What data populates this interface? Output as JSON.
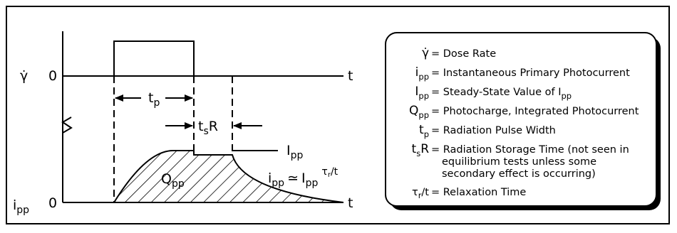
{
  "plot": {
    "y_axis_top_symbol": "γ̇",
    "y_axis_top_zero": "0",
    "y_axis_bottom_symbol": "i",
    "y_axis_bottom_symbol_sub": "pp",
    "y_axis_bottom_zero": "0",
    "t_axis_top": "t",
    "t_axis_bottom": "t",
    "tp_label": "t",
    "tp_label_sub": "p",
    "tsr_label_main": "t",
    "tsr_label_sub": "s",
    "tsr_label_end": "R",
    "ipp_steady_label": "I",
    "ipp_steady_label_sub": "pp",
    "qpp_label": "Q",
    "qpp_label_sub": "pp",
    "relax_i": "i",
    "relax_i_sub": "pp",
    "relax_approx": "≃",
    "relax_I": "I",
    "relax_I_sub": "pp",
    "relax_exponent": "τ",
    "relax_exponent_sub": "r",
    "relax_exponent_end": "/t"
  },
  "legend": {
    "rows": [
      {
        "symbol": "γ̇",
        "definition": "= Dose Rate"
      },
      {
        "symbol": "i",
        "symbol_sub": "pp",
        "definition": "= Instantaneous Primary Photocurrent"
      },
      {
        "symbol": "I",
        "symbol_sub": "pp",
        "definition": "= Steady-State Value of I",
        "definition_sub": "pp"
      },
      {
        "symbol": "Q",
        "symbol_sub": "pp",
        "definition": "= Photocharge, Integrated Photocurrent"
      },
      {
        "symbol": "t",
        "symbol_sub": "p",
        "definition": "= Radiation Pulse Width"
      },
      {
        "symbol": "t",
        "symbol_sub": "s",
        "symbol_end": "R",
        "definition": "= Radiation Storage Time (not seen in"
      },
      {
        "definition": "equilibrium tests unless some"
      },
      {
        "definition": "secondary effect is occurring)"
      },
      {
        "symbol": "τ",
        "symbol_sub": "r",
        "symbol_end": "/t",
        "definition": "= Relaxation Time"
      }
    ]
  }
}
